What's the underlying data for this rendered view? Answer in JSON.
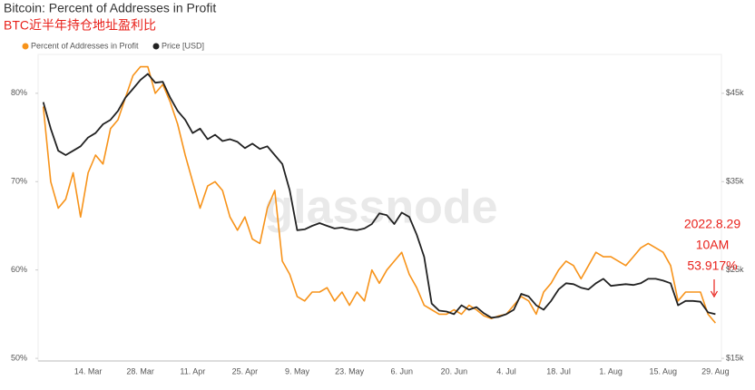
{
  "chart_data": {
    "type": "line",
    "title": "Bitcoin: Percent of Addresses in Profit",
    "subtitle": "BTC近半年持仓地址盈利比",
    "watermark": "glassnode",
    "annotation": [
      "2022.8.29",
      "10AM",
      "53.917%"
    ],
    "categories": [
      null,
      null,
      null,
      null,
      null,
      null,
      "14. Mar",
      null,
      null,
      null,
      null,
      null,
      null,
      "28. Mar",
      null,
      null,
      null,
      null,
      null,
      null,
      "11. Apr",
      null,
      null,
      null,
      null,
      null,
      null,
      "25. Apr",
      null,
      null,
      null,
      null,
      null,
      null,
      "9. May",
      null,
      null,
      null,
      null,
      null,
      null,
      "23. May",
      null,
      null,
      null,
      null,
      null,
      null,
      "6. Jun",
      null,
      null,
      null,
      null,
      null,
      null,
      "20. Jun",
      null,
      null,
      null,
      null,
      null,
      null,
      "4. Jul",
      null,
      null,
      null,
      null,
      null,
      null,
      "18. Jul",
      null,
      null,
      null,
      null,
      null,
      null,
      "1. Aug",
      null,
      null,
      null,
      null,
      null,
      null,
      "15. Aug",
      null,
      null,
      null,
      null,
      null,
      null,
      "29. Aug"
    ],
    "series": [
      {
        "name": "Percent of Addresses in Profit",
        "color": "#f7931a",
        "axis": "y",
        "values": [
          78.5,
          70,
          67,
          68,
          71,
          66,
          71,
          73,
          72,
          76,
          77,
          79.5,
          82,
          83,
          83,
          80,
          81,
          79,
          76.5,
          73,
          70,
          67,
          69.5,
          70,
          69,
          66,
          64.5,
          66,
          63.5,
          63,
          67,
          69,
          61,
          59.5,
          57,
          56.5,
          57.5,
          57.5,
          58,
          56.5,
          57.5,
          56,
          57.5,
          56.5,
          60,
          58.5,
          60,
          61,
          62,
          59.5,
          58,
          56,
          55.5,
          55,
          55,
          55.5,
          55,
          56,
          55.5,
          54.8,
          54.5,
          54.8,
          55,
          56,
          57,
          56.5,
          55,
          57.5,
          58.5,
          60,
          61,
          60.5,
          59,
          60.5,
          62,
          61.5,
          61.5,
          61,
          60.5,
          61.5,
          62.5,
          63,
          62.5,
          62,
          60.5,
          56.5,
          57.5,
          57.5,
          57.5,
          55,
          54
        ]
      },
      {
        "name": "Price [USD]",
        "color": "#222222",
        "axis": "y2",
        "values": [
          44000,
          41000,
          38500,
          38000,
          38500,
          39000,
          40000,
          40500,
          41500,
          42000,
          43000,
          44500,
          45500,
          46500,
          47200,
          46200,
          46300,
          44500,
          43000,
          42000,
          40500,
          41000,
          39800,
          40300,
          39600,
          39800,
          39500,
          38800,
          39300,
          38700,
          39000,
          38000,
          37000,
          34000,
          29500,
          29600,
          30000,
          30300,
          30000,
          29700,
          29800,
          29600,
          29500,
          29700,
          30200,
          31400,
          31200,
          30200,
          31500,
          31000,
          29000,
          26500,
          21200,
          20400,
          20300,
          20000,
          21000,
          20500,
          20800,
          20100,
          19600,
          19700,
          20000,
          20500,
          22300,
          22000,
          21000,
          20500,
          21500,
          22800,
          23500,
          23400,
          23000,
          22800,
          23500,
          24000,
          23200,
          23300,
          23400,
          23300,
          23500,
          24000,
          24000,
          23800,
          23500,
          21000,
          21500,
          21500,
          21400,
          20200,
          20000
        ]
      }
    ],
    "ylim": [
      49.7,
      84.4
    ],
    "yticks": [
      {
        "value": 50,
        "label": "50%"
      },
      {
        "value": 60,
        "label": "60%"
      },
      {
        "value": 70,
        "label": "70%"
      },
      {
        "value": 80,
        "label": "80%"
      }
    ],
    "y2lim": [
      14700,
      49400
    ],
    "y2ticks": [
      {
        "value": 15000,
        "label": "$15k"
      },
      {
        "value": 25000,
        "label": "$25k"
      },
      {
        "value": 35000,
        "label": "$35k"
      },
      {
        "value": 45000,
        "label": "$45k"
      }
    ],
    "grid": false
  }
}
